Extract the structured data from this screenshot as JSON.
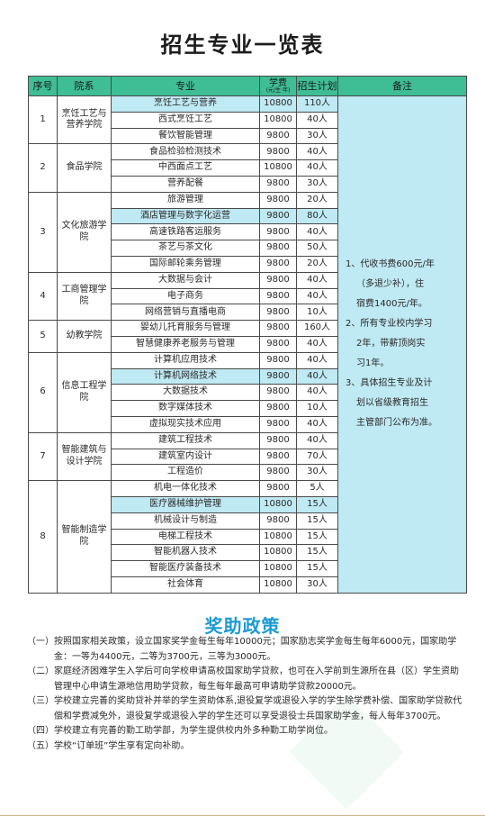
{
  "title": "招生专业一览表",
  "table": {
    "headers": {
      "index": "序号",
      "college": "院系",
      "major": "专业",
      "fee": "学费",
      "fee_unit": "(元/生·年)",
      "quota": "招生计划",
      "note": "备注"
    },
    "groups": [
      {
        "index": "1",
        "college": "烹饪工艺与营养学院",
        "majors": [
          {
            "name": "烹饪工艺与营养",
            "fee": "10800",
            "quota": "110人"
          },
          {
            "name": "西式烹饪工艺",
            "fee": "10800",
            "quota": "40人"
          },
          {
            "name": "餐饮智能管理",
            "fee": "9800",
            "quota": "30人"
          }
        ]
      },
      {
        "index": "2",
        "college": "食品学院",
        "majors": [
          {
            "name": "食品检验检测技术",
            "fee": "9800",
            "quota": "40人"
          },
          {
            "name": "中西面点工艺",
            "fee": "10800",
            "quota": "40人"
          },
          {
            "name": "营养配餐",
            "fee": "9800",
            "quota": "30人"
          }
        ]
      },
      {
        "index": "3",
        "college": "文化旅游学院",
        "majors": [
          {
            "name": "旅游管理",
            "fee": "9800",
            "quota": "20人"
          },
          {
            "name": "酒店管理与数字化运营",
            "fee": "9800",
            "quota": "80人"
          },
          {
            "name": "高速铁路客运服务",
            "fee": "9800",
            "quota": "40人"
          },
          {
            "name": "茶艺与茶文化",
            "fee": "9800",
            "quota": "50人"
          },
          {
            "name": "国际邮轮乘务管理",
            "fee": "9800",
            "quota": "20人"
          }
        ]
      },
      {
        "index": "4",
        "college": "工商管理学院",
        "majors": [
          {
            "name": "大数据与会计",
            "fee": "9800",
            "quota": "40人"
          },
          {
            "name": "电子商务",
            "fee": "9800",
            "quota": "40人"
          },
          {
            "name": "网络营销与直播电商",
            "fee": "9800",
            "quota": "10人"
          }
        ]
      },
      {
        "index": "5",
        "college": "幼教学院",
        "majors": [
          {
            "name": "婴幼儿托育服务与管理",
            "fee": "9800",
            "quota": "160人"
          },
          {
            "name": "智慧健康养老服务与管理",
            "fee": "9800",
            "quota": "40人"
          }
        ]
      },
      {
        "index": "6",
        "college": "信息工程学院",
        "majors": [
          {
            "name": "计算机应用技术",
            "fee": "9800",
            "quota": "40人"
          },
          {
            "name": "计算机网络技术",
            "fee": "9800",
            "quota": "40人"
          },
          {
            "name": "大数据技术",
            "fee": "9800",
            "quota": "40人"
          },
          {
            "name": "数字媒体技术",
            "fee": "9800",
            "quota": "10人"
          },
          {
            "name": "虚拟现实技术应用",
            "fee": "9800",
            "quota": "40人"
          }
        ]
      },
      {
        "index": "7",
        "college": "智能建筑与设计学院",
        "majors": [
          {
            "name": "建筑工程技术",
            "fee": "9800",
            "quota": "40人"
          },
          {
            "name": "建筑室内设计",
            "fee": "9800",
            "quota": "70人"
          },
          {
            "name": "工程造价",
            "fee": "9800",
            "quota": "30人"
          }
        ]
      },
      {
        "index": "8",
        "college": "智能制造学院",
        "majors": [
          {
            "name": "机电一体化技术",
            "fee": "9800",
            "quota": "5人"
          },
          {
            "name": "医疗器械维护管理",
            "fee": "10800",
            "quota": "15人"
          },
          {
            "name": "机械设计与制造",
            "fee": "9800",
            "quota": "15人"
          },
          {
            "name": "电梯工程技术",
            "fee": "10800",
            "quota": "15人"
          },
          {
            "name": "智能机器人技术",
            "fee": "10800",
            "quota": "15人"
          },
          {
            "name": "智能医疗装备技术",
            "fee": "10800",
            "quota": "15人"
          },
          {
            "name": "社会体育",
            "fee": "10800",
            "quota": "30人"
          }
        ]
      }
    ],
    "notes": [
      "1、代收书费600元/年",
      "（多退少补），住",
      "宿费1400元/年。",
      "2、所有专业校内学习",
      "2年，带薪顶岗实",
      "习1年。",
      "3、具体招生专业及计",
      "划以省级教育招生",
      "主管部门公布为准。"
    ]
  },
  "aid": {
    "title": "奖助政策",
    "items": [
      {
        "num": "（一）",
        "text": "按照国家相关政策，设立国家奖学金每生每年10000元；国家励志奖学金每生每年6000元，国家助学金：一等为4400元，二等为3700元，三等为3000元。"
      },
      {
        "num": "（二）",
        "text": "家庭经济困难学生入学后可向学校申请高校国家助学贷款，也可在入学前到生源所在县（区）学生资助管理中心申请生源地信用助学贷款，每生每年最高可申请助学贷款20000元。"
      },
      {
        "num": "（三）",
        "text": "学校建立完善的奖助贷补并举的学生资助体系,退役复学或退役入学的学生除学费补偿、国家助学贷款代偿和学费减免外，退役复学或退役入学的学生还可以享受退役士兵国家助学金，每人每年3700元。"
      },
      {
        "num": "（四）",
        "text": "学校建立有完善的勤工助学部，为学生提供校内外多种勤工助学岗位。"
      },
      {
        "num": "（五）",
        "text": "学校“订单班”学生享有定向补助。"
      }
    ]
  },
  "colors": {
    "header_bg": "#3fbd95",
    "highlight_bg": "#bfe9f3",
    "aid_title": "#1c9ad6"
  }
}
